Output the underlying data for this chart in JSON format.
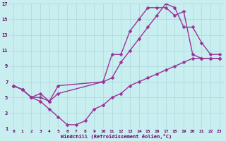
{
  "xlabel": "Windchill (Refroidissement éolien,°C)",
  "bg_color": "#c8eef0",
  "grid_color": "#aad8da",
  "line_color": "#993399",
  "line1_x": [
    0,
    1,
    2,
    3,
    4,
    5,
    10,
    11,
    12,
    13,
    14,
    15,
    16,
    17,
    18,
    19,
    20,
    21,
    22,
    23
  ],
  "line1_y": [
    6.5,
    6,
    5,
    5,
    4.5,
    5.5,
    7,
    10.5,
    10.5,
    13.5,
    15,
    16.5,
    16.5,
    16.5,
    15.5,
    16,
    10.5,
    10,
    10,
    10
  ],
  "line2_x": [
    0,
    1,
    2,
    3,
    4,
    5,
    10,
    11,
    12,
    13,
    14,
    15,
    16,
    17,
    18,
    19,
    20,
    21,
    22,
    23
  ],
  "line2_y": [
    6.5,
    6,
    5,
    5.5,
    4.5,
    6.5,
    7,
    7.5,
    9.5,
    11,
    12.5,
    14,
    15.5,
    17,
    16.5,
    14,
    14,
    12,
    10.5,
    10.5
  ],
  "line3_x": [
    0,
    1,
    2,
    3,
    4,
    5,
    6,
    7,
    8,
    9,
    10,
    11,
    12,
    13,
    14,
    15,
    16,
    17,
    18,
    19,
    20,
    21,
    22,
    23
  ],
  "line3_y": [
    6.5,
    6,
    5,
    4.5,
    3.5,
    2.5,
    1.5,
    1.5,
    2,
    3.5,
    4,
    5,
    5.5,
    6.5,
    7,
    7.5,
    8,
    8.5,
    9,
    9.5,
    10,
    10,
    10,
    10
  ],
  "xlim": [
    -0.5,
    23.5
  ],
  "ylim": [
    1,
    17
  ],
  "xticks": [
    0,
    1,
    2,
    3,
    4,
    5,
    6,
    7,
    8,
    9,
    10,
    11,
    12,
    13,
    14,
    15,
    16,
    17,
    18,
    19,
    20,
    21,
    22,
    23
  ],
  "yticks": [
    1,
    3,
    5,
    7,
    9,
    11,
    13,
    15,
    17
  ],
  "markersize": 2.5,
  "linewidth": 1.0
}
